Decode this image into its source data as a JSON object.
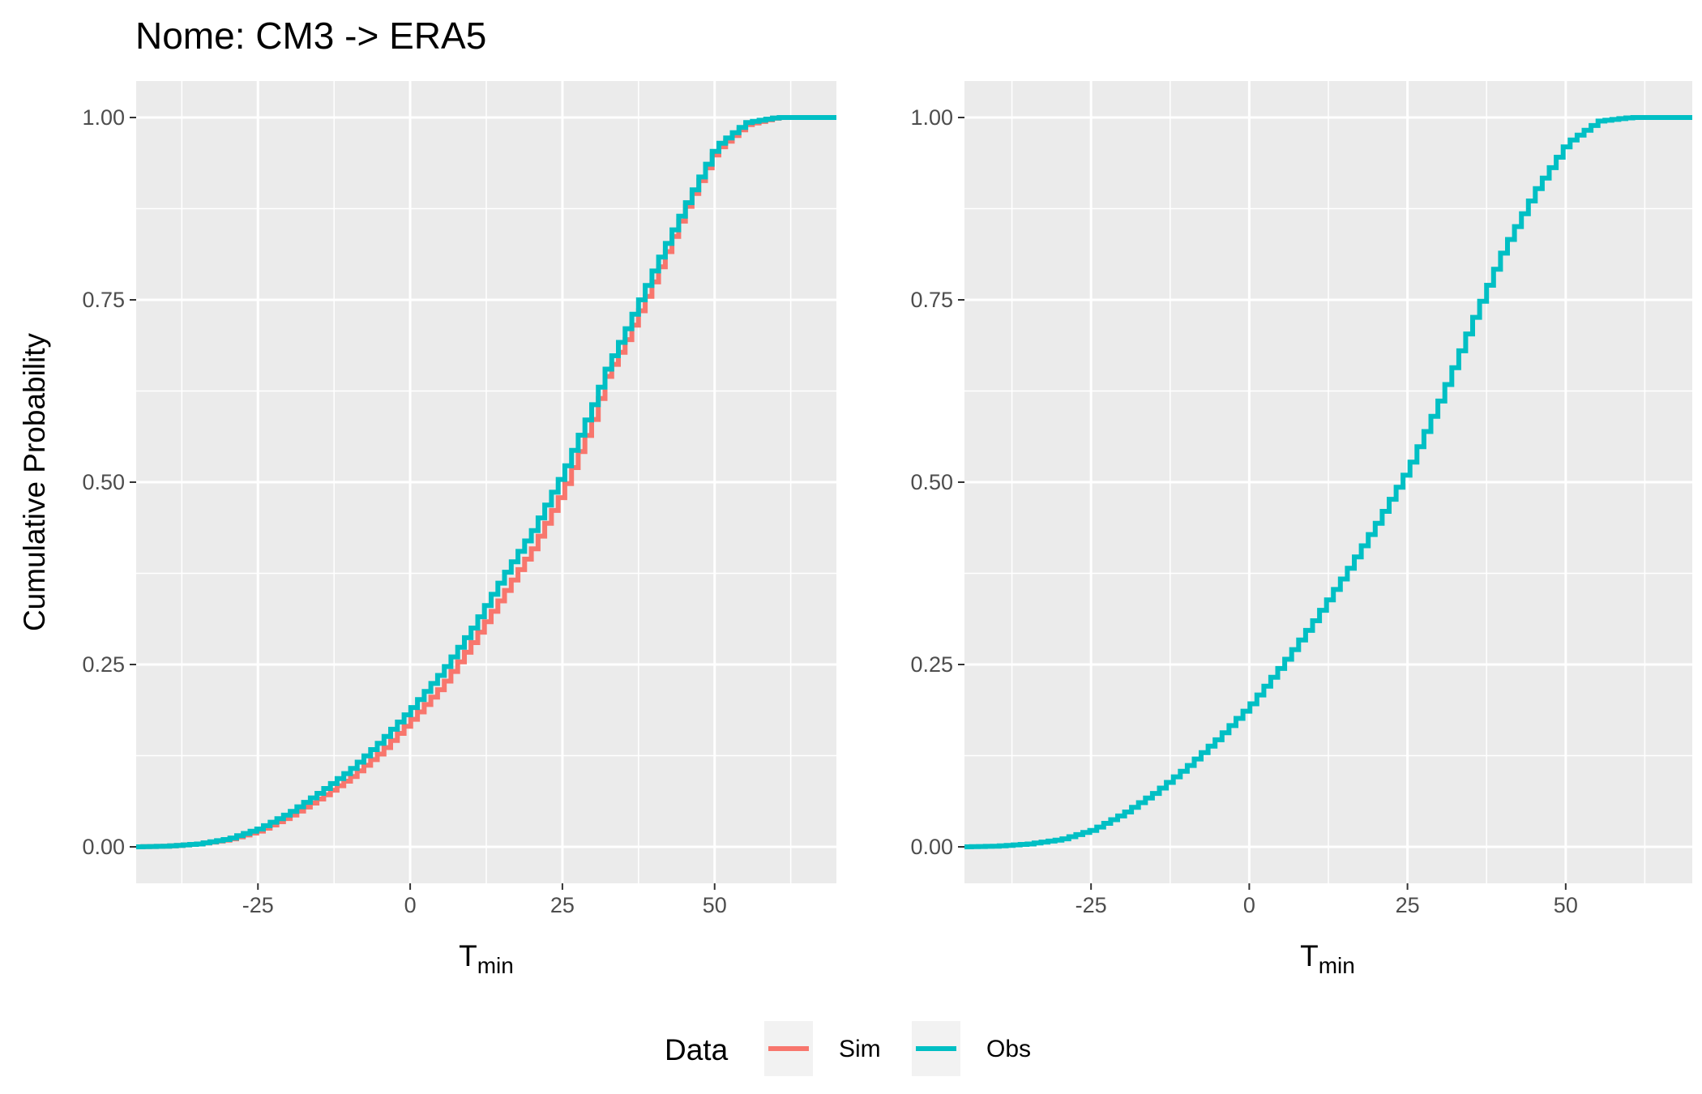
{
  "chart_data": {
    "type": "line",
    "title": "Nome: CM3 -> ERA5",
    "ylabel": "Cumulative Probability",
    "legend": {
      "title": "Data",
      "placement": "bottom",
      "entries": [
        {
          "label": "Sim",
          "color": "#F8766D"
        },
        {
          "label": "Obs",
          "color": "#00BFC4"
        }
      ]
    },
    "x_ticks": [
      "-25",
      "0",
      "25",
      "50"
    ],
    "x_tick_values": [
      -25,
      0,
      25,
      50
    ],
    "y_ticks": [
      "0.00",
      "0.25",
      "0.50",
      "0.75",
      "1.00"
    ],
    "y_tick_values": [
      0,
      0.25,
      0.5,
      0.75,
      1.0
    ],
    "xlim": [
      -45,
      70
    ],
    "ylim": [
      -0.05,
      1.05
    ],
    "grid": true,
    "panels": [
      {
        "xlabel_main": "T",
        "xlabel_sub": "min",
        "series": [
          {
            "name": "Sim",
            "color": "#F8766D",
            "x": [
              -45,
              -40,
              -35,
              -30,
              -25,
              -20,
              -15,
              -10,
              -5,
              0,
              5,
              10,
              15,
              20,
              25,
              30,
              32,
              35,
              40,
              45,
              50,
              55,
              60,
              65,
              70
            ],
            "y": [
              0,
              0.001,
              0.004,
              0.01,
              0.022,
              0.042,
              0.067,
              0.095,
              0.13,
              0.174,
              0.22,
              0.28,
              0.345,
              0.41,
              0.49,
              0.59,
              0.645,
              0.69,
              0.78,
              0.875,
              0.955,
              0.99,
              1.0,
              1.0,
              1.0
            ]
          },
          {
            "name": "Obs",
            "color": "#00BFC4",
            "x": [
              -45,
              -40,
              -35,
              -30,
              -25,
              -20,
              -15,
              -10,
              -5,
              0,
              5,
              10,
              15,
              20,
              25,
              30,
              32,
              35,
              40,
              45,
              50,
              55,
              60,
              65,
              70
            ],
            "y": [
              0,
              0.001,
              0.004,
              0.011,
              0.025,
              0.047,
              0.075,
              0.106,
              0.145,
              0.19,
              0.24,
              0.3,
              0.37,
              0.435,
              0.515,
              0.61,
              0.655,
              0.705,
              0.795,
              0.88,
              0.96,
              0.993,
              1.0,
              1.0,
              1.0
            ]
          }
        ]
      },
      {
        "xlabel_main": "T",
        "xlabel_sub": "min",
        "series": [
          {
            "name": "Obs",
            "color": "#00BFC4",
            "x": [
              -45,
              -40,
              -35,
              -30,
              -25,
              -20,
              -15,
              -10,
              -5,
              0,
              5,
              10,
              15,
              20,
              25,
              30,
              35,
              40,
              45,
              50,
              55,
              60,
              65,
              70
            ],
            "y": [
              0,
              0.001,
              0.004,
              0.01,
              0.023,
              0.046,
              0.075,
              0.11,
              0.15,
              0.195,
              0.25,
              0.31,
              0.375,
              0.445,
              0.52,
              0.615,
              0.72,
              0.82,
              0.9,
              0.965,
              0.995,
              1.0,
              1.0,
              1.0
            ]
          }
        ]
      }
    ]
  }
}
